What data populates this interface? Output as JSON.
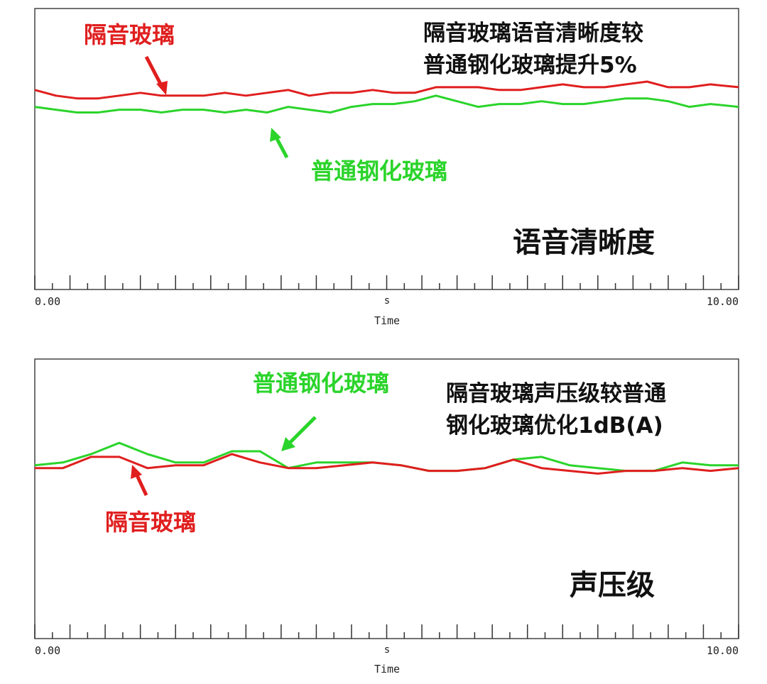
{
  "chart_data": [
    {
      "type": "line",
      "title": "语音清晰度",
      "xlabel": "Time",
      "x_unit": "s",
      "xlim": [
        0,
        10
      ],
      "x_tick_labels": [
        "0.00",
        "10.00"
      ],
      "grid": false,
      "note_lines": [
        "隔音玻璃语音清晰度较",
        "普通钢化玻璃提升5%"
      ],
      "x": [
        0.0,
        0.3,
        0.6,
        0.9,
        1.2,
        1.5,
        1.8,
        2.1,
        2.4,
        2.7,
        3.0,
        3.3,
        3.6,
        3.9,
        4.2,
        4.5,
        4.8,
        5.1,
        5.4,
        5.7,
        6.0,
        6.3,
        6.6,
        6.9,
        7.2,
        7.5,
        7.8,
        8.1,
        8.4,
        8.7,
        9.0,
        9.3,
        9.6,
        10.0
      ],
      "series": [
        {
          "name": "隔音玻璃",
          "color": "#e01e1e",
          "values": [
            0.71,
            0.69,
            0.68,
            0.68,
            0.69,
            0.7,
            0.69,
            0.69,
            0.69,
            0.7,
            0.69,
            0.7,
            0.71,
            0.69,
            0.7,
            0.7,
            0.71,
            0.7,
            0.7,
            0.72,
            0.72,
            0.72,
            0.71,
            0.71,
            0.72,
            0.73,
            0.72,
            0.72,
            0.73,
            0.74,
            0.72,
            0.72,
            0.73,
            0.72
          ]
        },
        {
          "name": "普通钢化玻璃",
          "color": "#2bd42b",
          "values": [
            0.65,
            0.64,
            0.63,
            0.63,
            0.64,
            0.64,
            0.63,
            0.64,
            0.64,
            0.63,
            0.64,
            0.63,
            0.65,
            0.64,
            0.63,
            0.65,
            0.66,
            0.66,
            0.67,
            0.69,
            0.67,
            0.65,
            0.66,
            0.66,
            0.67,
            0.66,
            0.66,
            0.67,
            0.68,
            0.68,
            0.67,
            0.65,
            0.66,
            0.65
          ]
        }
      ]
    },
    {
      "type": "line",
      "title": "声压级",
      "xlabel": "Time",
      "x_unit": "s",
      "xlim": [
        0,
        10
      ],
      "x_tick_labels": [
        "0.00",
        "10.00"
      ],
      "grid": false,
      "note_lines": [
        "隔音玻璃声压级较普通",
        "钢化玻璃优化1dB(A)"
      ],
      "x": [
        0.0,
        0.4,
        0.8,
        1.2,
        1.6,
        2.0,
        2.4,
        2.8,
        3.2,
        3.6,
        4.0,
        4.4,
        4.8,
        5.2,
        5.6,
        6.0,
        6.4,
        6.8,
        7.2,
        7.6,
        8.0,
        8.4,
        8.8,
        9.2,
        9.6,
        10.0
      ],
      "series": [
        {
          "name": "隔音玻璃",
          "color": "#e01e1e",
          "values": [
            0.61,
            0.61,
            0.65,
            0.65,
            0.61,
            0.62,
            0.62,
            0.66,
            0.63,
            0.61,
            0.61,
            0.62,
            0.63,
            0.62,
            0.6,
            0.6,
            0.61,
            0.64,
            0.61,
            0.6,
            0.59,
            0.6,
            0.6,
            0.61,
            0.6,
            0.61
          ]
        },
        {
          "name": "普通钢化玻璃",
          "color": "#2bd42b",
          "values": [
            0.62,
            0.63,
            0.66,
            0.7,
            0.66,
            0.63,
            0.63,
            0.67,
            0.67,
            0.61,
            0.63,
            0.63,
            0.63,
            0.62,
            0.6,
            0.6,
            0.61,
            0.64,
            0.65,
            0.62,
            0.61,
            0.6,
            0.6,
            0.63,
            0.62,
            0.62
          ]
        }
      ]
    }
  ]
}
